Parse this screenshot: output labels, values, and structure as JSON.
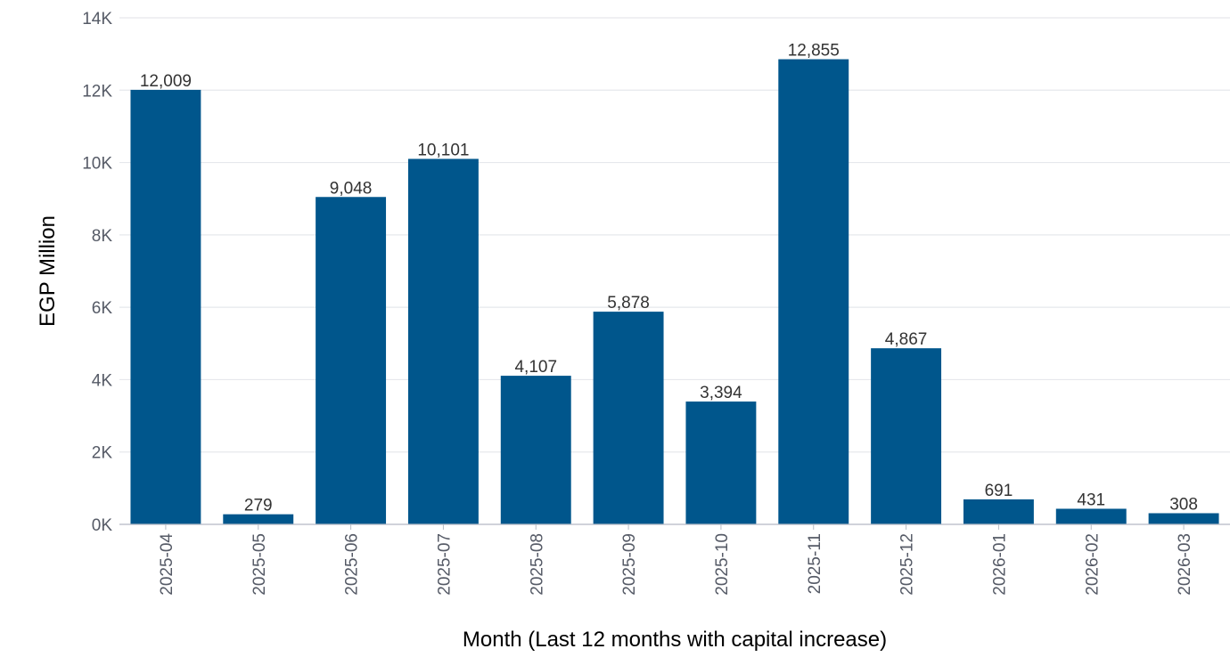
{
  "chart_data": {
    "type": "bar",
    "categories": [
      "2025-04",
      "2025-05",
      "2025-06",
      "2025-07",
      "2025-08",
      "2025-09",
      "2025-10",
      "2025-11",
      "2025-12",
      "2026-01",
      "2026-02",
      "2026-03"
    ],
    "values": [
      12009,
      279,
      9048,
      10101,
      4107,
      5878,
      3394,
      12855,
      4867,
      691,
      431,
      308
    ],
    "value_labels": [
      "12,009",
      "279",
      "9,048",
      "10,101",
      "4,107",
      "5,878",
      "3,394",
      "12,855",
      "4,867",
      "691",
      "431",
      "308"
    ],
    "ylabel": "EGP Million",
    "xlabel": "Month (Last 12 months with capital increase)",
    "ylim": [
      0,
      14000
    ],
    "yticks": [
      0,
      2000,
      4000,
      6000,
      8000,
      10000,
      12000,
      14000
    ],
    "ytick_labels": [
      "0K",
      "2K",
      "4K",
      "6K",
      "8K",
      "10K",
      "12K",
      "14K"
    ],
    "bar_color": "#00568c",
    "grid": true,
    "legend": "none"
  }
}
